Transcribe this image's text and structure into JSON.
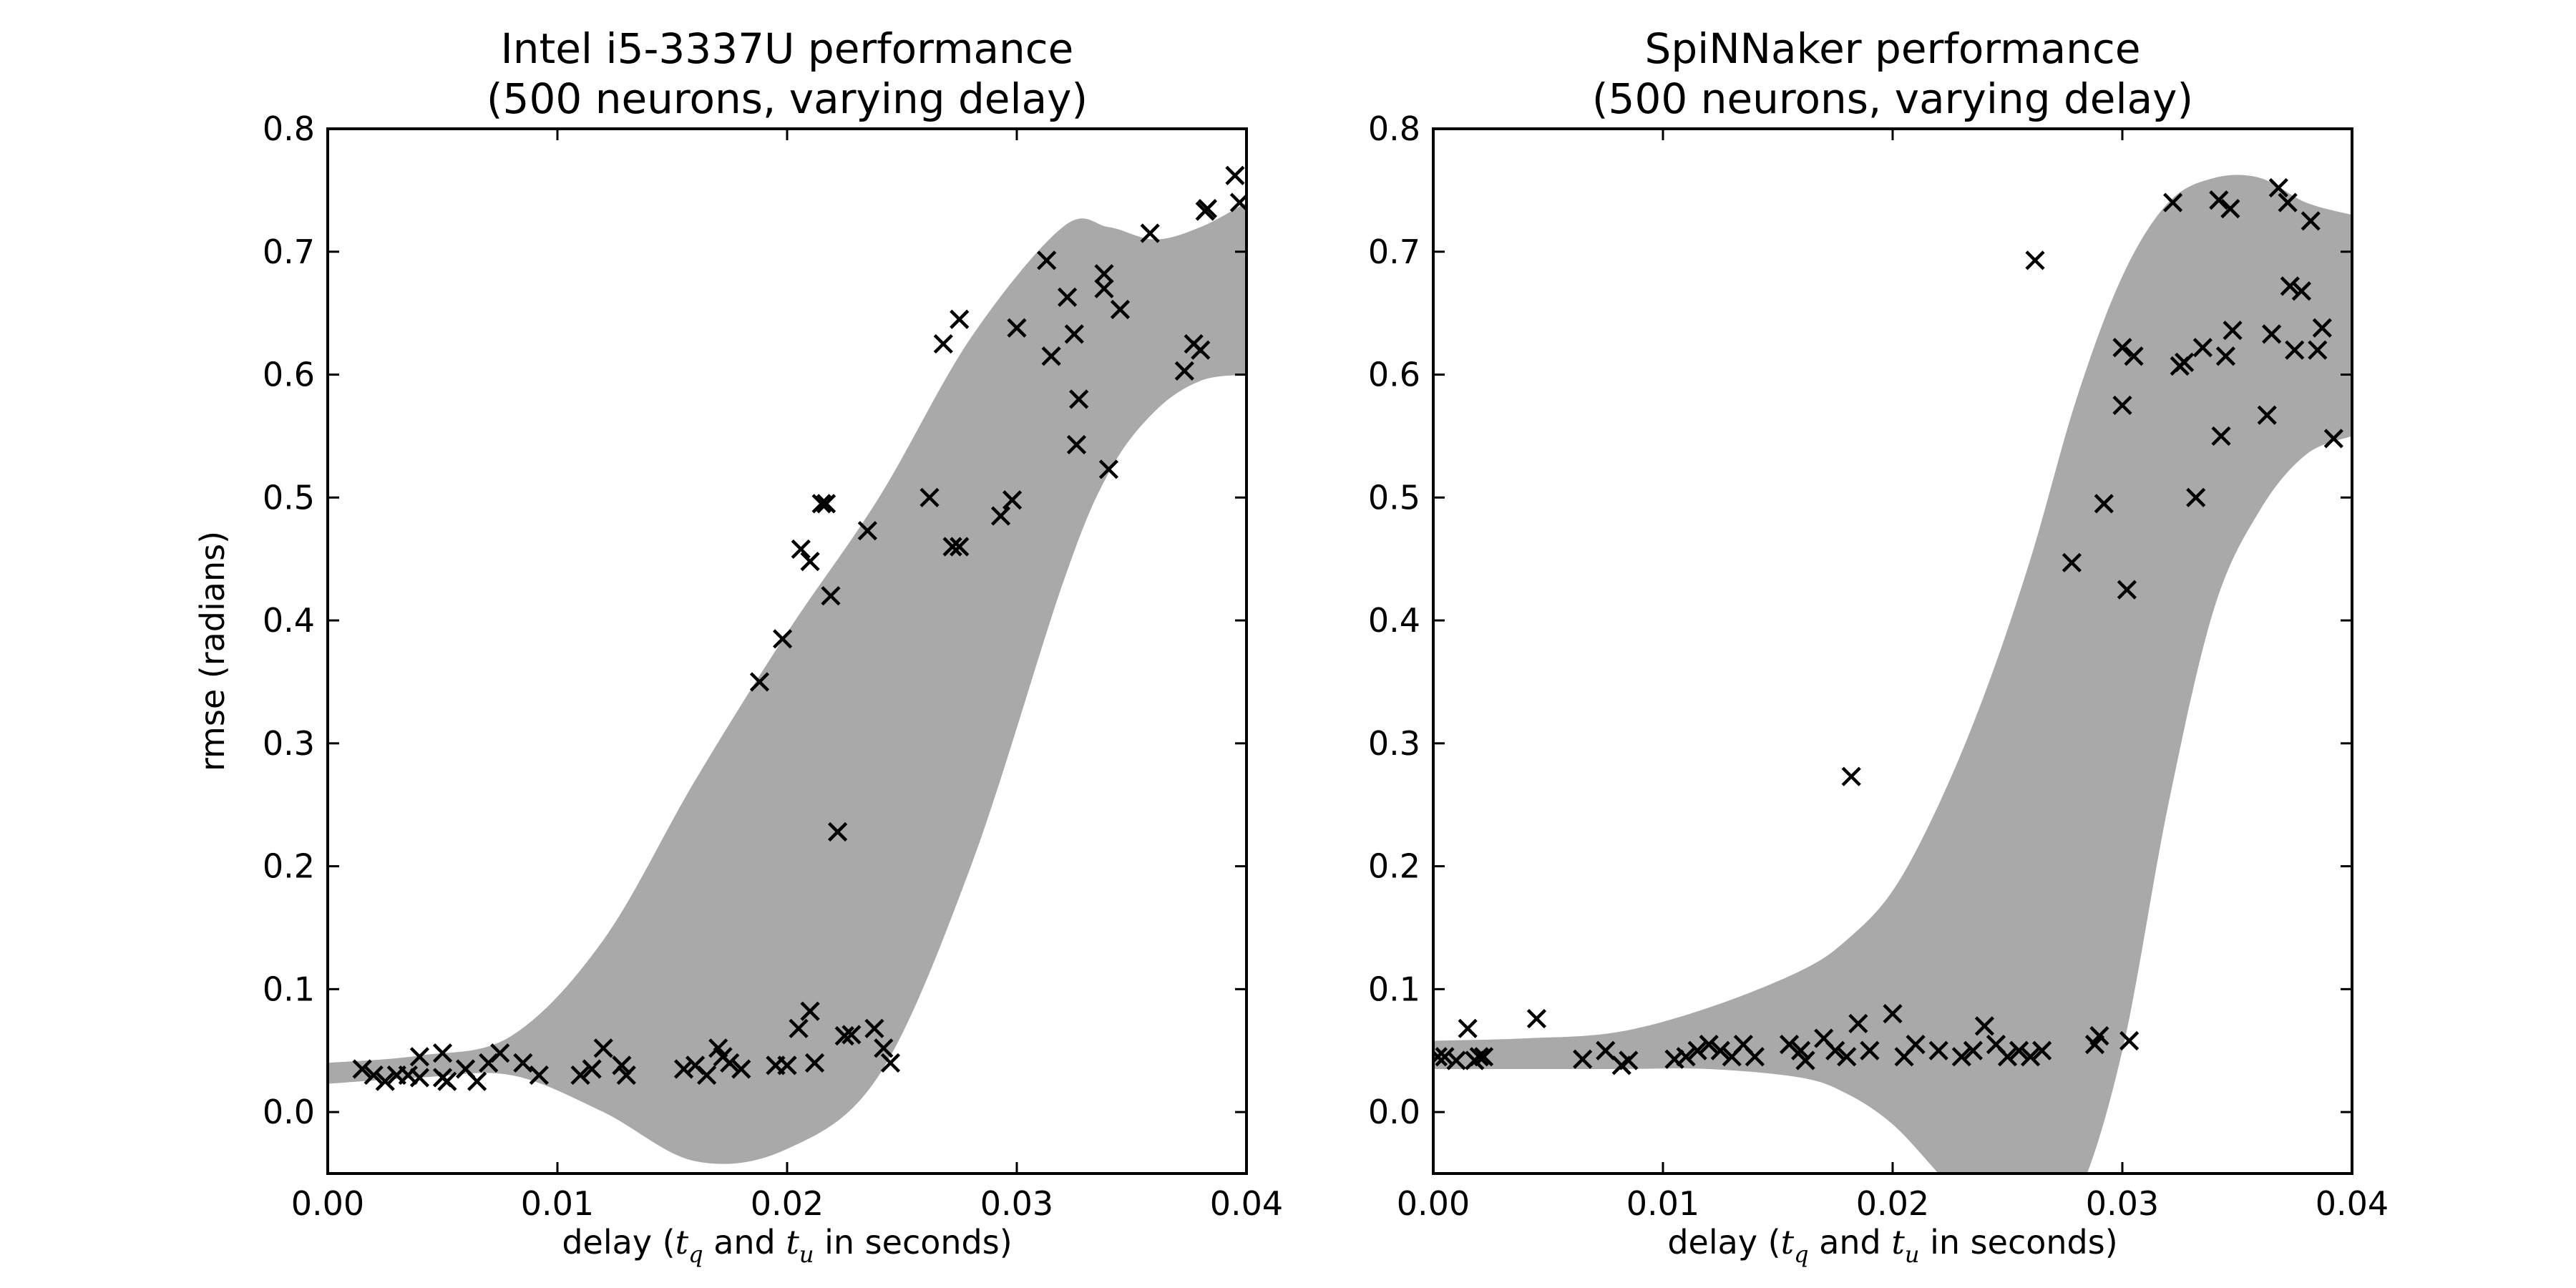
{
  "chart_data": [
    {
      "type": "scatter",
      "title_line1": "Intel i5-3337U performance",
      "title_line2": "(500 neurons, varying delay)",
      "ylabel": "rmse (radians)",
      "xlabel": {
        "prefix": "delay (",
        "var1": "t",
        "sub1": "q",
        "mid": " and ",
        "var2": "t",
        "sub2": "u",
        "suffix": " in seconds)"
      },
      "xlim": [
        0.0,
        0.04
      ],
      "ylim": [
        -0.05,
        0.8
      ],
      "xticks": [
        "0.00",
        "0.01",
        "0.02",
        "0.03",
        "0.04"
      ],
      "yticks": [
        "0.0",
        "0.1",
        "0.2",
        "0.3",
        "0.4",
        "0.5",
        "0.6",
        "0.7",
        "0.8"
      ],
      "band": {
        "x": [
          0,
          0.004,
          0.008,
          0.012,
          0.016,
          0.02,
          0.024,
          0.028,
          0.032,
          0.034,
          0.036,
          0.038,
          0.04
        ],
        "upper": [
          0.04,
          0.046,
          0.062,
          0.14,
          0.27,
          0.39,
          0.5,
          0.63,
          0.72,
          0.72,
          0.71,
          0.72,
          0.74
        ],
        "lower": [
          0.023,
          0.028,
          0.03,
          0.0,
          -0.04,
          -0.03,
          0.03,
          0.2,
          0.43,
          0.52,
          0.57,
          0.595,
          0.6
        ]
      },
      "points": [
        [
          0.0015,
          0.035
        ],
        [
          0.002,
          0.03
        ],
        [
          0.0025,
          0.025
        ],
        [
          0.003,
          0.03
        ],
        [
          0.0035,
          0.03
        ],
        [
          0.004,
          0.045
        ],
        [
          0.004,
          0.028
        ],
        [
          0.005,
          0.048
        ],
        [
          0.005,
          0.028
        ],
        [
          0.0052,
          0.025
        ],
        [
          0.006,
          0.035
        ],
        [
          0.0065,
          0.025
        ],
        [
          0.007,
          0.04
        ],
        [
          0.0075,
          0.048
        ],
        [
          0.0085,
          0.04
        ],
        [
          0.0092,
          0.03
        ],
        [
          0.011,
          0.03
        ],
        [
          0.0115,
          0.035
        ],
        [
          0.012,
          0.052
        ],
        [
          0.0128,
          0.038
        ],
        [
          0.013,
          0.03
        ],
        [
          0.0155,
          0.035
        ],
        [
          0.016,
          0.038
        ],
        [
          0.0165,
          0.03
        ],
        [
          0.017,
          0.052
        ],
        [
          0.0172,
          0.045
        ],
        [
          0.0175,
          0.04
        ],
        [
          0.018,
          0.035
        ],
        [
          0.0195,
          0.038
        ],
        [
          0.02,
          0.038
        ],
        [
          0.0205,
          0.068
        ],
        [
          0.021,
          0.082
        ],
        [
          0.0212,
          0.04
        ],
        [
          0.0225,
          0.062
        ],
        [
          0.0228,
          0.063
        ],
        [
          0.0238,
          0.068
        ],
        [
          0.0242,
          0.052
        ],
        [
          0.0245,
          0.04
        ],
        [
          0.0188,
          0.35
        ],
        [
          0.0198,
          0.385
        ],
        [
          0.0206,
          0.458
        ],
        [
          0.021,
          0.448
        ],
        [
          0.0215,
          0.495
        ],
        [
          0.0217,
          0.495
        ],
        [
          0.0219,
          0.42
        ],
        [
          0.0222,
          0.228
        ],
        [
          0.0235,
          0.473
        ],
        [
          0.0262,
          0.5
        ],
        [
          0.0268,
          0.625
        ],
        [
          0.0272,
          0.46
        ],
        [
          0.0275,
          0.46
        ],
        [
          0.0275,
          0.645
        ],
        [
          0.0293,
          0.485
        ],
        [
          0.0298,
          0.498
        ],
        [
          0.03,
          0.638
        ],
        [
          0.0313,
          0.693
        ],
        [
          0.0315,
          0.615
        ],
        [
          0.0322,
          0.663
        ],
        [
          0.0325,
          0.633
        ],
        [
          0.0326,
          0.543
        ],
        [
          0.0327,
          0.58
        ],
        [
          0.0338,
          0.682
        ],
        [
          0.0338,
          0.67
        ],
        [
          0.034,
          0.523
        ],
        [
          0.0345,
          0.653
        ],
        [
          0.0358,
          0.715
        ],
        [
          0.0373,
          0.603
        ],
        [
          0.0377,
          0.625
        ],
        [
          0.038,
          0.62
        ],
        [
          0.0382,
          0.733
        ],
        [
          0.0383,
          0.735
        ],
        [
          0.0395,
          0.762
        ],
        [
          0.0397,
          0.74
        ]
      ]
    },
    {
      "type": "scatter",
      "title_line1": "SpiNNaker performance",
      "title_line2": "(500 neurons, varying delay)",
      "ylabel": "",
      "xlabel": {
        "prefix": "delay (",
        "var1": "t",
        "sub1": "q",
        "mid": " and ",
        "var2": "t",
        "sub2": "u",
        "suffix": " in seconds)"
      },
      "xlim": [
        0.0,
        0.04
      ],
      "ylim": [
        -0.05,
        0.8
      ],
      "xticks": [
        "0.00",
        "0.01",
        "0.02",
        "0.03",
        "0.04"
      ],
      "yticks": [
        "0.0",
        "0.1",
        "0.2",
        "0.3",
        "0.4",
        "0.5",
        "0.6",
        "0.7",
        "0.8"
      ],
      "band": {
        "x": [
          0,
          0.004,
          0.008,
          0.012,
          0.016,
          0.018,
          0.02,
          0.022,
          0.024,
          0.026,
          0.028,
          0.03,
          0.032,
          0.034,
          0.036,
          0.038,
          0.04
        ],
        "upper": [
          0.058,
          0.06,
          0.065,
          0.085,
          0.115,
          0.14,
          0.18,
          0.25,
          0.34,
          0.45,
          0.58,
          0.68,
          0.74,
          0.76,
          0.76,
          0.74,
          0.73
        ],
        "lower": [
          0.035,
          0.035,
          0.035,
          0.035,
          0.028,
          0.015,
          -0.01,
          -0.05,
          -0.09,
          -0.1,
          -0.07,
          0.05,
          0.25,
          0.41,
          0.49,
          0.535,
          0.55
        ]
      },
      "points": [
        [
          0.0002,
          0.045
        ],
        [
          0.0005,
          0.045
        ],
        [
          0.001,
          0.042
        ],
        [
          0.0015,
          0.068
        ],
        [
          0.0018,
          0.042
        ],
        [
          0.002,
          0.045
        ],
        [
          0.0022,
          0.045
        ],
        [
          0.0045,
          0.076
        ],
        [
          0.0065,
          0.043
        ],
        [
          0.0075,
          0.05
        ],
        [
          0.0082,
          0.038
        ],
        [
          0.0085,
          0.042
        ],
        [
          0.0105,
          0.043
        ],
        [
          0.011,
          0.045
        ],
        [
          0.0115,
          0.05
        ],
        [
          0.012,
          0.055
        ],
        [
          0.0125,
          0.05
        ],
        [
          0.013,
          0.045
        ],
        [
          0.0135,
          0.055
        ],
        [
          0.014,
          0.045
        ],
        [
          0.0155,
          0.055
        ],
        [
          0.016,
          0.05
        ],
        [
          0.0162,
          0.042
        ],
        [
          0.017,
          0.06
        ],
        [
          0.0175,
          0.05
        ],
        [
          0.018,
          0.045
        ],
        [
          0.0185,
          0.072
        ],
        [
          0.019,
          0.05
        ],
        [
          0.02,
          0.08
        ],
        [
          0.0205,
          0.045
        ],
        [
          0.021,
          0.055
        ],
        [
          0.022,
          0.05
        ],
        [
          0.023,
          0.045
        ],
        [
          0.0235,
          0.05
        ],
        [
          0.024,
          0.07
        ],
        [
          0.0245,
          0.055
        ],
        [
          0.025,
          0.045
        ],
        [
          0.0255,
          0.05
        ],
        [
          0.026,
          0.045
        ],
        [
          0.0265,
          0.05
        ],
        [
          0.0288,
          0.055
        ],
        [
          0.029,
          0.062
        ],
        [
          0.0303,
          0.058
        ],
        [
          0.0182,
          0.273
        ],
        [
          0.0262,
          0.693
        ],
        [
          0.0278,
          0.447
        ],
        [
          0.0292,
          0.495
        ],
        [
          0.03,
          0.575
        ],
        [
          0.03,
          0.622
        ],
        [
          0.0302,
          0.425
        ],
        [
          0.0305,
          0.615
        ],
        [
          0.0322,
          0.74
        ],
        [
          0.0325,
          0.607
        ],
        [
          0.0327,
          0.61
        ],
        [
          0.0332,
          0.5
        ],
        [
          0.0335,
          0.622
        ],
        [
          0.0342,
          0.742
        ],
        [
          0.0343,
          0.55
        ],
        [
          0.0345,
          0.615
        ],
        [
          0.0347,
          0.735
        ],
        [
          0.0348,
          0.636
        ],
        [
          0.0363,
          0.567
        ],
        [
          0.0365,
          0.633
        ],
        [
          0.0368,
          0.752
        ],
        [
          0.0372,
          0.74
        ],
        [
          0.0373,
          0.672
        ],
        [
          0.0375,
          0.62
        ],
        [
          0.0378,
          0.668
        ],
        [
          0.0382,
          0.725
        ],
        [
          0.0385,
          0.62
        ],
        [
          0.0387,
          0.638
        ],
        [
          0.0392,
          0.548
        ]
      ]
    }
  ]
}
